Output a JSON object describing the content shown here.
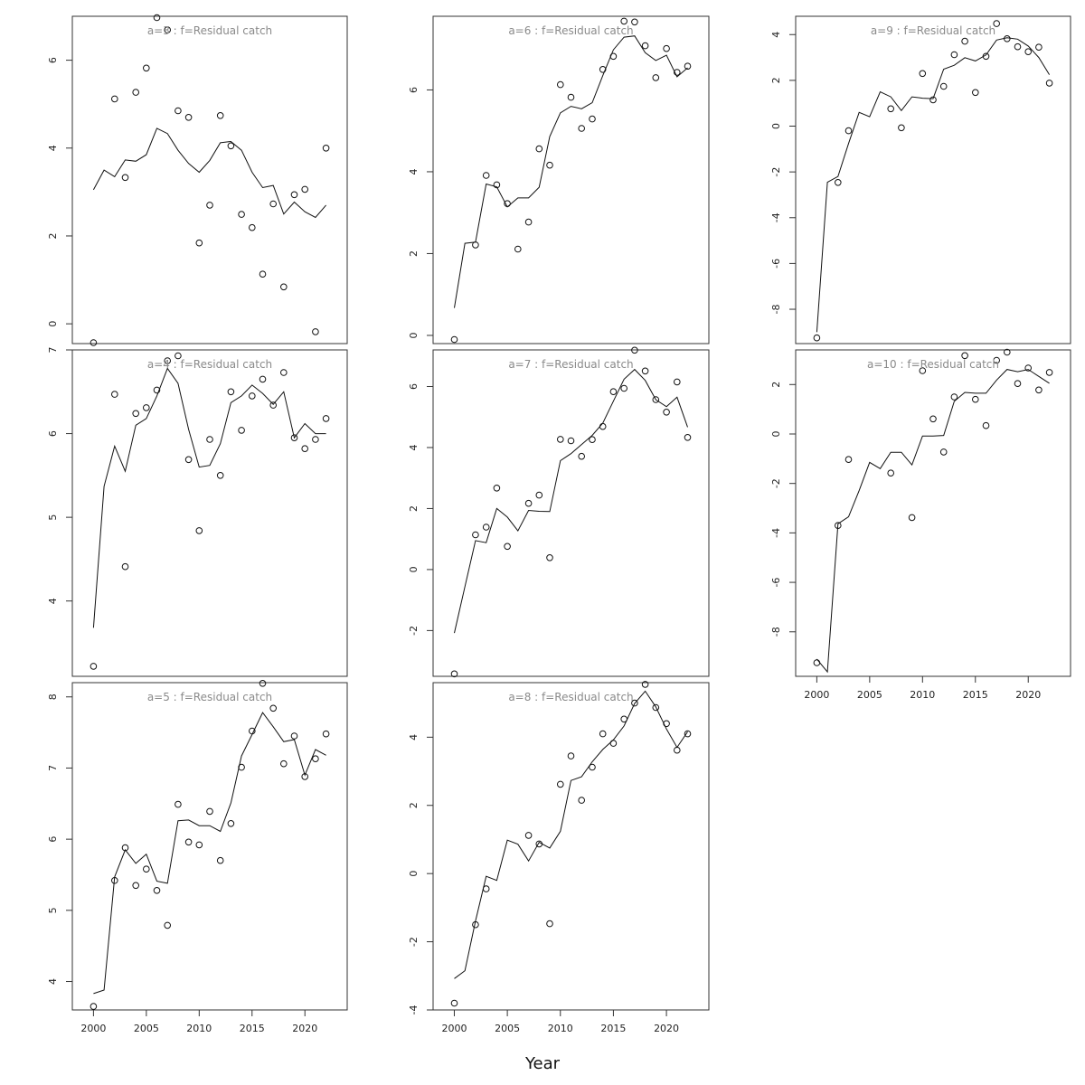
{
  "figure": {
    "xlabel": "Year"
  },
  "chart_data": [
    {
      "type": "scatter",
      "title": "a=3  :  f=Residual catch",
      "xlim": [
        1998,
        2024
      ],
      "ylim": [
        -0.45,
        7.0
      ],
      "xticks": [
        2000,
        2005,
        2010,
        2015,
        2020
      ],
      "yticks": [
        0,
        2,
        4,
        6
      ],
      "x": [
        2000,
        2001,
        2002,
        2003,
        2004,
        2005,
        2006,
        2007,
        2008,
        2009,
        2010,
        2011,
        2012,
        2013,
        2014,
        2015,
        2016,
        2017,
        2018,
        2019,
        2020,
        2021,
        2022
      ],
      "observed": [
        -0.43,
        null,
        5.12,
        3.33,
        5.27,
        5.82,
        6.97,
        6.69,
        4.85,
        4.7,
        1.84,
        2.7,
        4.74,
        4.05,
        2.49,
        2.19,
        1.13,
        2.73,
        0.84,
        2.94,
        3.06,
        -0.18,
        4.0
      ],
      "fitted": [
        3.05,
        3.5,
        3.35,
        3.73,
        3.7,
        3.85,
        4.45,
        4.33,
        3.95,
        3.65,
        3.45,
        3.72,
        4.12,
        4.15,
        3.95,
        3.45,
        3.1,
        3.15,
        2.5,
        2.77,
        2.55,
        2.42,
        2.7
      ]
    },
    {
      "type": "scatter",
      "title": "a=4  :  f=Residual catch",
      "xlim": [
        1998,
        2024
      ],
      "ylim": [
        3.1,
        7.0
      ],
      "xticks": [
        2000,
        2005,
        2010,
        2015,
        2020
      ],
      "yticks": [
        4,
        5,
        6,
        7
      ],
      "x": [
        2000,
        2001,
        2002,
        2003,
        2004,
        2005,
        2006,
        2007,
        2008,
        2009,
        2010,
        2011,
        2012,
        2013,
        2014,
        2015,
        2016,
        2017,
        2018,
        2019,
        2020,
        2021,
        2022
      ],
      "observed": [
        3.22,
        null,
        6.47,
        4.41,
        6.24,
        6.31,
        6.52,
        6.87,
        6.93,
        5.69,
        4.84,
        5.93,
        5.5,
        6.5,
        6.04,
        6.45,
        6.65,
        6.34,
        6.73,
        5.95,
        5.82,
        5.93,
        6.18
      ],
      "fitted": [
        3.68,
        5.37,
        5.85,
        5.55,
        6.1,
        6.18,
        6.45,
        6.78,
        6.6,
        6.05,
        5.6,
        5.62,
        5.88,
        6.37,
        6.45,
        6.58,
        6.48,
        6.35,
        6.5,
        5.95,
        6.12,
        6.0,
        6.0
      ]
    },
    {
      "type": "scatter",
      "title": "a=5  :  f=Residual catch",
      "xlim": [
        1998,
        2024
      ],
      "ylim": [
        3.6,
        8.2
      ],
      "xticks": [
        2000,
        2005,
        2010,
        2015,
        2020
      ],
      "yticks": [
        4,
        5,
        6,
        7,
        8
      ],
      "x": [
        2000,
        2001,
        2002,
        2003,
        2004,
        2005,
        2006,
        2007,
        2008,
        2009,
        2010,
        2011,
        2012,
        2013,
        2014,
        2015,
        2016,
        2017,
        2018,
        2019,
        2020,
        2021,
        2022
      ],
      "observed": [
        3.65,
        null,
        5.42,
        5.88,
        5.35,
        5.58,
        5.28,
        4.79,
        6.49,
        5.96,
        5.92,
        6.39,
        5.7,
        6.22,
        7.01,
        7.52,
        8.19,
        7.84,
        7.06,
        7.45,
        6.88,
        7.13,
        7.48
      ],
      "fitted": [
        3.83,
        3.88,
        5.47,
        5.85,
        5.66,
        5.79,
        5.41,
        5.38,
        6.26,
        6.27,
        6.19,
        6.19,
        6.11,
        6.51,
        7.17,
        7.47,
        7.78,
        7.58,
        7.37,
        7.4,
        6.9,
        7.26,
        7.18
      ]
    },
    {
      "type": "scatter",
      "title": "a=6  :  f=Residual catch",
      "xlim": [
        1998,
        2024
      ],
      "ylim": [
        -0.2,
        7.8
      ],
      "xticks": [
        2000,
        2005,
        2010,
        2015,
        2020
      ],
      "yticks": [
        0,
        2,
        4,
        6
      ],
      "x": [
        2000,
        2001,
        2002,
        2003,
        2004,
        2005,
        2006,
        2007,
        2008,
        2009,
        2010,
        2011,
        2012,
        2013,
        2014,
        2015,
        2016,
        2017,
        2018,
        2019,
        2020,
        2021,
        2022
      ],
      "observed": [
        -0.1,
        null,
        2.21,
        3.91,
        3.68,
        3.22,
        2.11,
        2.77,
        4.56,
        4.16,
        6.13,
        5.82,
        5.06,
        5.29,
        6.5,
        6.82,
        7.68,
        7.66,
        7.08,
        6.3,
        7.01,
        6.43,
        6.58
      ],
      "fitted": [
        0.67,
        2.25,
        2.28,
        3.7,
        3.63,
        3.14,
        3.36,
        3.36,
        3.62,
        4.86,
        5.44,
        5.6,
        5.54,
        5.69,
        6.35,
        6.98,
        7.29,
        7.32,
        6.91,
        6.72,
        6.85,
        6.32,
        6.54
      ]
    },
    {
      "type": "scatter",
      "title": "a=7  :  f=Residual catch",
      "xlim": [
        1998,
        2024
      ],
      "ylim": [
        -3.5,
        7.2
      ],
      "xticks": [
        2000,
        2005,
        2010,
        2015,
        2020
      ],
      "yticks": [
        -2,
        0,
        2,
        4,
        6
      ],
      "x": [
        2000,
        2001,
        2002,
        2003,
        2004,
        2005,
        2006,
        2007,
        2008,
        2009,
        2010,
        2011,
        2012,
        2013,
        2014,
        2015,
        2016,
        2017,
        2018,
        2019,
        2020,
        2021,
        2022
      ],
      "observed": [
        -3.42,
        null,
        1.14,
        1.39,
        2.67,
        0.76,
        null,
        2.17,
        2.44,
        0.39,
        4.27,
        4.22,
        3.71,
        4.26,
        4.69,
        5.83,
        5.94,
        7.19,
        6.51,
        5.57,
        5.16,
        6.15,
        4.33
      ],
      "fitted": [
        -2.08,
        -0.56,
        0.95,
        0.88,
        2.0,
        1.72,
        1.27,
        1.94,
        1.91,
        1.9,
        3.57,
        3.8,
        4.1,
        4.4,
        4.8,
        5.52,
        6.24,
        6.56,
        6.2,
        5.57,
        5.34,
        5.65,
        4.67
      ]
    },
    {
      "type": "scatter",
      "title": "a=8  :  f=Residual catch",
      "xlim": [
        1998,
        2024
      ],
      "ylim": [
        -4.0,
        5.6
      ],
      "xticks": [
        2000,
        2005,
        2010,
        2015,
        2020
      ],
      "yticks": [
        -4,
        -2,
        0,
        2,
        4
      ],
      "x": [
        2000,
        2001,
        2002,
        2003,
        2004,
        2005,
        2006,
        2007,
        2008,
        2009,
        2010,
        2011,
        2012,
        2013,
        2014,
        2015,
        2016,
        2017,
        2018,
        2019,
        2020,
        2021,
        2022
      ],
      "observed": [
        -3.8,
        null,
        -1.5,
        -0.45,
        null,
        null,
        null,
        1.12,
        0.87,
        -1.47,
        2.62,
        3.45,
        2.15,
        3.12,
        4.1,
        3.82,
        4.53,
        5.0,
        5.55,
        4.87,
        4.4,
        3.62,
        4.1
      ],
      "fitted": [
        -3.08,
        -2.85,
        -1.39,
        -0.08,
        -0.2,
        0.98,
        0.86,
        0.37,
        0.92,
        0.75,
        1.24,
        2.73,
        2.84,
        3.28,
        3.64,
        3.92,
        4.33,
        4.99,
        5.35,
        4.89,
        4.24,
        3.7,
        4.16
      ]
    },
    {
      "type": "scatter",
      "title": "a=9  :  f=Residual catch",
      "xlim": [
        1998,
        2024
      ],
      "ylim": [
        -9.5,
        4.8
      ],
      "xticks": [
        2000,
        2005,
        2010,
        2015,
        2020
      ],
      "yticks": [
        -8,
        -6,
        -4,
        -2,
        0,
        2,
        4
      ],
      "x": [
        2000,
        2001,
        2002,
        2003,
        2004,
        2005,
        2006,
        2007,
        2008,
        2009,
        2010,
        2011,
        2012,
        2013,
        2014,
        2015,
        2016,
        2017,
        2018,
        2019,
        2020,
        2021,
        2022
      ],
      "observed": [
        -9.25,
        null,
        -2.46,
        -0.2,
        null,
        null,
        null,
        0.76,
        -0.07,
        null,
        2.3,
        1.15,
        1.74,
        3.12,
        3.71,
        1.47,
        3.05,
        4.48,
        3.82,
        3.47,
        3.25,
        3.45,
        1.88
      ],
      "fitted": [
        -9.0,
        -2.45,
        -2.2,
        -0.76,
        0.6,
        0.41,
        1.5,
        1.28,
        0.68,
        1.28,
        1.22,
        1.2,
        2.49,
        2.66,
        2.99,
        2.85,
        3.11,
        3.76,
        3.86,
        3.8,
        3.5,
        3.0,
        2.25
      ]
    },
    {
      "type": "scatter",
      "title": "a=10  :  f=Residual catch",
      "xlim": [
        1998,
        2024
      ],
      "ylim": [
        -9.8,
        3.4
      ],
      "xticks": [
        2000,
        2005,
        2010,
        2015,
        2020
      ],
      "yticks": [
        -8,
        -6,
        -4,
        -2,
        0,
        2
      ],
      "x": [
        2000,
        2001,
        2002,
        2003,
        2004,
        2005,
        2006,
        2007,
        2008,
        2009,
        2010,
        2011,
        2012,
        2013,
        2014,
        2015,
        2016,
        2017,
        2018,
        2019,
        2020,
        2021,
        2022
      ],
      "observed": [
        -9.25,
        null,
        -3.7,
        -1.03,
        null,
        null,
        null,
        -1.58,
        null,
        -3.38,
        2.56,
        0.61,
        -0.73,
        1.5,
        3.17,
        1.4,
        0.34,
        2.98,
        3.31,
        2.04,
        2.67,
        1.78,
        2.49
      ],
      "fitted": [
        -9.1,
        -9.62,
        -3.63,
        -3.35,
        -2.29,
        -1.15,
        -1.4,
        -0.74,
        -0.74,
        -1.25,
        -0.08,
        -0.08,
        -0.06,
        1.32,
        1.68,
        1.65,
        1.65,
        2.18,
        2.61,
        2.52,
        2.61,
        2.33,
        2.05
      ]
    }
  ]
}
